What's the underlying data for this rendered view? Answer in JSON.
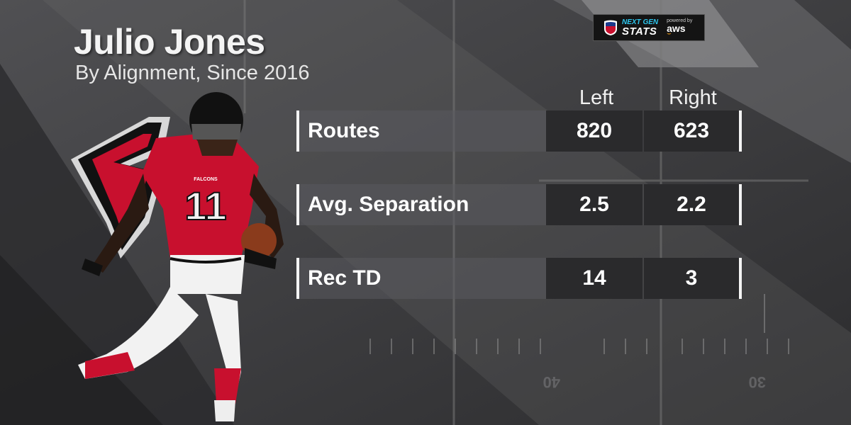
{
  "header": {
    "title": "Julio Jones",
    "subtitle": "By Alignment, Since 2016"
  },
  "badge": {
    "line1": "NEXT GEN",
    "line2": "STATS",
    "powered": "powered by",
    "sponsor": "aws"
  },
  "player": {
    "jersey_number": "11",
    "team_wordmark": "FALCONS"
  },
  "table": {
    "columns": [
      "Left",
      "Right"
    ],
    "rows": [
      {
        "label": "Routes",
        "left": "820",
        "right": "623"
      },
      {
        "label": "Avg. Separation",
        "left": "2.5",
        "right": "2.2"
      },
      {
        "label": "Rec TD",
        "left": "14",
        "right": "3"
      }
    ]
  },
  "field": {
    "yard_markers": [
      "40",
      "30"
    ]
  },
  "colors": {
    "falcons_red": "#c8102e",
    "falcons_black": "#111111",
    "ngs_blue": "#2ec8f0"
  },
  "icons": [
    "nfl-shield-icon",
    "falcons-logo-icon"
  ]
}
